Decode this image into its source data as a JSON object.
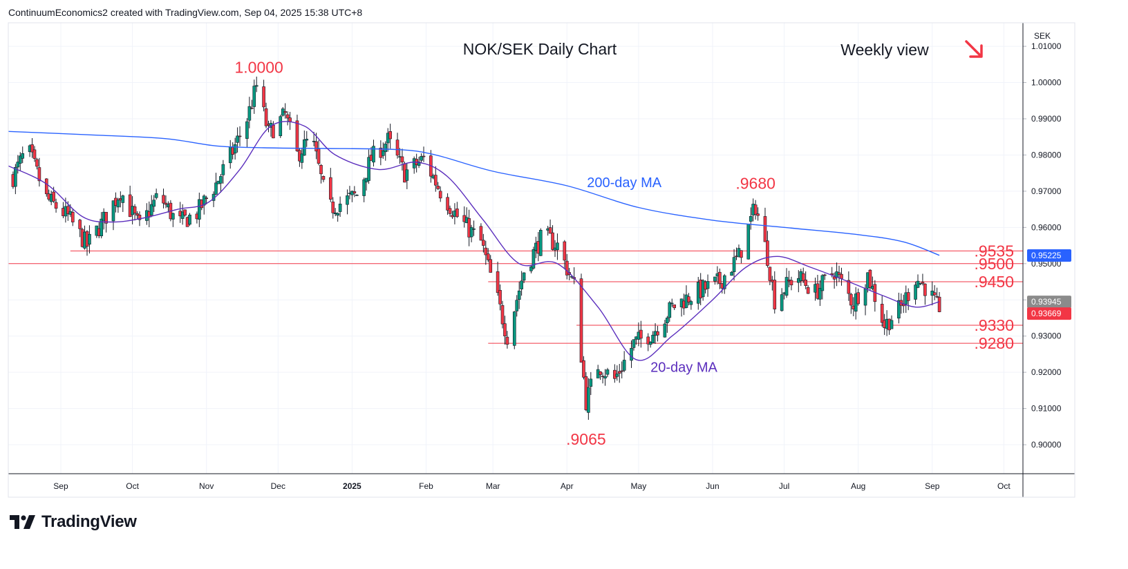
{
  "header": {
    "credit": "ContinuumEconomics2 created with TradingView.com, Sep 04, 2025 15:38 UTC+8"
  },
  "branding": {
    "logo_text": "TradingView",
    "logo_icon": "tradingview-logo-icon"
  },
  "colors": {
    "up": "#089981",
    "down": "#f23645",
    "ma200": "#2962ff",
    "ma20": "#5b2ebd",
    "level_line": "#f23645",
    "badge_blue": "#2962ff",
    "badge_gray": "#8b8b8b",
    "badge_red": "#f23645"
  },
  "chart_data": {
    "type": "candlestick",
    "title": "NOK/SEK Daily Chart",
    "subtitle": "Weekly view",
    "trend_icon": "arrow-down-right-icon",
    "currency": "SEK",
    "ylim": [
      0.892,
      1.0165
    ],
    "y_ticks": [
      "1.01000",
      "1.00000",
      "0.99000",
      "0.98000",
      "0.97000",
      "0.96000",
      "0.95000",
      "0.94000",
      "0.93000",
      "0.92000",
      "0.91000",
      "0.90000"
    ],
    "y_tick_values": [
      1.01,
      1.0,
      0.99,
      0.98,
      0.97,
      0.96,
      0.95,
      0.94,
      0.93,
      0.92,
      0.91,
      0.9
    ],
    "x_ticks": [
      {
        "label": "Sep",
        "date": "2024-09-01",
        "bold": false
      },
      {
        "label": "Oct",
        "date": "2024-10-01",
        "bold": false
      },
      {
        "label": "Nov",
        "date": "2024-11-01",
        "bold": false
      },
      {
        "label": "Dec",
        "date": "2024-12-01",
        "bold": false
      },
      {
        "label": "2025",
        "date": "2025-01-01",
        "bold": true
      },
      {
        "label": "Feb",
        "date": "2025-02-01",
        "bold": false
      },
      {
        "label": "Mar",
        "date": "2025-03-01",
        "bold": false
      },
      {
        "label": "Apr",
        "date": "2025-04-01",
        "bold": false
      },
      {
        "label": "May",
        "date": "2025-05-01",
        "bold": false
      },
      {
        "label": "Jun",
        "date": "2025-06-01",
        "bold": false
      },
      {
        "label": "Jul",
        "date": "2025-07-01",
        "bold": false
      },
      {
        "label": "Aug",
        "date": "2025-08-01",
        "bold": false
      },
      {
        "label": "Sep",
        "date": "2025-09-01",
        "bold": false
      },
      {
        "label": "Oct",
        "date": "2025-10-01",
        "bold": false
      }
    ],
    "x_range": [
      "2024-08-10",
      "2025-10-09"
    ],
    "price_anchors": [
      {
        "date": "2024-08-12",
        "price": 0.974
      },
      {
        "date": "2024-08-18",
        "price": 0.982
      },
      {
        "date": "2024-08-26",
        "price": 0.968
      },
      {
        "date": "2024-09-04",
        "price": 0.963
      },
      {
        "date": "2024-09-12",
        "price": 0.955
      },
      {
        "date": "2024-09-18",
        "price": 0.961
      },
      {
        "date": "2024-09-26",
        "price": 0.97
      },
      {
        "date": "2024-10-04",
        "price": 0.96
      },
      {
        "date": "2024-10-12",
        "price": 0.969
      },
      {
        "date": "2024-10-20",
        "price": 0.961
      },
      {
        "date": "2024-10-28",
        "price": 0.964
      },
      {
        "date": "2024-11-05",
        "price": 0.972
      },
      {
        "date": "2024-11-12",
        "price": 0.981
      },
      {
        "date": "2024-11-18",
        "price": 0.99
      },
      {
        "date": "2024-11-22",
        "price": 0.999
      },
      {
        "date": "2024-11-27",
        "price": 0.986
      },
      {
        "date": "2024-12-04",
        "price": 0.991
      },
      {
        "date": "2024-12-09",
        "price": 0.98
      },
      {
        "date": "2024-12-15",
        "price": 0.985
      },
      {
        "date": "2024-12-22",
        "price": 0.965
      },
      {
        "date": "2025-01-03",
        "price": 0.969
      },
      {
        "date": "2025-01-09",
        "price": 0.979
      },
      {
        "date": "2025-01-16",
        "price": 0.984
      },
      {
        "date": "2025-01-23",
        "price": 0.975
      },
      {
        "date": "2025-01-31",
        "price": 0.979
      },
      {
        "date": "2025-02-07",
        "price": 0.97
      },
      {
        "date": "2025-02-14",
        "price": 0.963
      },
      {
        "date": "2025-02-24",
        "price": 0.956
      },
      {
        "date": "2025-03-03",
        "price": 0.94
      },
      {
        "date": "2025-03-07",
        "price": 0.93
      },
      {
        "date": "2025-03-14",
        "price": 0.948
      },
      {
        "date": "2025-03-22",
        "price": 0.958
      },
      {
        "date": "2025-03-28",
        "price": 0.955
      },
      {
        "date": "2025-04-04",
        "price": 0.944
      },
      {
        "date": "2025-04-09",
        "price": 0.912
      },
      {
        "date": "2025-04-14",
        "price": 0.922
      },
      {
        "date": "2025-04-21",
        "price": 0.918
      },
      {
        "date": "2025-04-29",
        "price": 0.928
      },
      {
        "date": "2025-05-07",
        "price": 0.931
      },
      {
        "date": "2025-05-15",
        "price": 0.938
      },
      {
        "date": "2025-05-25",
        "price": 0.942
      },
      {
        "date": "2025-06-04",
        "price": 0.945
      },
      {
        "date": "2025-06-12",
        "price": 0.952
      },
      {
        "date": "2025-06-19",
        "price": 0.966
      },
      {
        "date": "2025-06-24",
        "price": 0.952
      },
      {
        "date": "2025-06-27",
        "price": 0.94
      },
      {
        "date": "2025-07-06",
        "price": 0.947
      },
      {
        "date": "2025-07-14",
        "price": 0.942
      },
      {
        "date": "2025-07-22",
        "price": 0.948
      },
      {
        "date": "2025-07-30",
        "price": 0.939
      },
      {
        "date": "2025-08-05",
        "price": 0.947
      },
      {
        "date": "2025-08-12",
        "price": 0.933
      },
      {
        "date": "2025-08-19",
        "price": 0.938
      },
      {
        "date": "2025-08-25",
        "price": 0.946
      },
      {
        "date": "2025-08-30",
        "price": 0.943
      },
      {
        "date": "2025-09-04",
        "price": 0.937
      }
    ],
    "ma200": [
      {
        "date": "2024-08-10",
        "price": 0.9865
      },
      {
        "date": "2024-09-15",
        "price": 0.9855
      },
      {
        "date": "2024-10-15",
        "price": 0.9845
      },
      {
        "date": "2024-11-05",
        "price": 0.9825
      },
      {
        "date": "2024-11-25",
        "price": 0.982
      },
      {
        "date": "2024-12-20",
        "price": 0.9818
      },
      {
        "date": "2025-01-20",
        "price": 0.9815
      },
      {
        "date": "2025-02-05",
        "price": 0.98
      },
      {
        "date": "2025-03-01",
        "price": 0.9755
      },
      {
        "date": "2025-04-01",
        "price": 0.9715
      },
      {
        "date": "2025-05-01",
        "price": 0.9655
      },
      {
        "date": "2025-06-01",
        "price": 0.962
      },
      {
        "date": "2025-07-01",
        "price": 0.96
      },
      {
        "date": "2025-08-01",
        "price": 0.958
      },
      {
        "date": "2025-08-20",
        "price": 0.956
      },
      {
        "date": "2025-09-04",
        "price": 0.9523
      }
    ],
    "ma20": [
      {
        "date": "2024-08-10",
        "price": 0.977
      },
      {
        "date": "2024-08-26",
        "price": 0.972
      },
      {
        "date": "2024-09-10",
        "price": 0.963
      },
      {
        "date": "2024-09-22",
        "price": 0.9615
      },
      {
        "date": "2024-10-05",
        "price": 0.9625
      },
      {
        "date": "2024-10-20",
        "price": 0.965
      },
      {
        "date": "2024-11-02",
        "price": 0.967
      },
      {
        "date": "2024-11-15",
        "price": 0.976
      },
      {
        "date": "2024-11-28",
        "price": 0.988
      },
      {
        "date": "2024-12-12",
        "price": 0.988
      },
      {
        "date": "2024-12-25",
        "price": 0.98
      },
      {
        "date": "2025-01-12",
        "price": 0.976
      },
      {
        "date": "2025-01-28",
        "price": 0.978
      },
      {
        "date": "2025-02-10",
        "price": 0.974
      },
      {
        "date": "2025-02-25",
        "price": 0.962
      },
      {
        "date": "2025-03-12",
        "price": 0.95
      },
      {
        "date": "2025-03-28",
        "price": 0.95
      },
      {
        "date": "2025-04-14",
        "price": 0.938
      },
      {
        "date": "2025-04-30",
        "price": 0.9235
      },
      {
        "date": "2025-05-15",
        "price": 0.93
      },
      {
        "date": "2025-06-01",
        "price": 0.94
      },
      {
        "date": "2025-06-15",
        "price": 0.949
      },
      {
        "date": "2025-06-28",
        "price": 0.952
      },
      {
        "date": "2025-07-12",
        "price": 0.949
      },
      {
        "date": "2025-07-28",
        "price": 0.945
      },
      {
        "date": "2025-08-12",
        "price": 0.941
      },
      {
        "date": "2025-08-25",
        "price": 0.938
      },
      {
        "date": "2025-09-04",
        "price": 0.9395
      }
    ],
    "levels": [
      {
        "label": ".9535",
        "value": 0.9535,
        "from": "2024-09-05"
      },
      {
        "label": ".9500",
        "value": 0.95,
        "from": "2024-08-10"
      },
      {
        "label": ".9450",
        "value": 0.945,
        "from": "2025-02-27"
      },
      {
        "label": ".9330",
        "value": 0.933,
        "from": "2025-04-05"
      },
      {
        "label": ".9280",
        "value": 0.928,
        "from": "2025-02-27"
      }
    ],
    "annotations": [
      {
        "label": "1.0000",
        "date": "2024-11-23",
        "value": 1.0,
        "position": "above"
      },
      {
        "label": ".9680",
        "date": "2025-06-19",
        "value": 0.968,
        "position": "above"
      },
      {
        "label": ".9065",
        "date": "2025-04-09",
        "value": 0.9065,
        "position": "below"
      }
    ],
    "ma_labels": [
      {
        "label": "200-day MA",
        "date": "2025-04-25",
        "value": 0.9725,
        "series": "ma200"
      },
      {
        "label": "20-day MA",
        "date": "2025-05-20",
        "value": 0.9215,
        "series": "ma20"
      }
    ],
    "price_badges": [
      {
        "label": "0.95225",
        "value": 0.95225,
        "color": "badge_blue"
      },
      {
        "label": "0.93945",
        "value": 0.93945,
        "color": "badge_gray"
      },
      {
        "label": "0.93669",
        "value": 0.93669,
        "color": "badge_red"
      }
    ],
    "last_close": 0.93669
  }
}
